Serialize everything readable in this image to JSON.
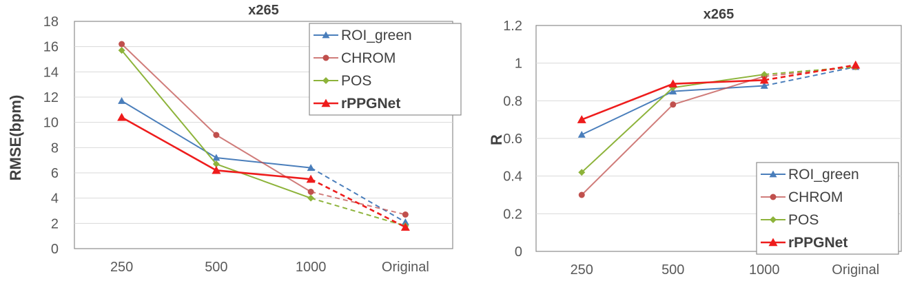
{
  "chart_data": [
    {
      "type": "line",
      "title": "x265",
      "xlabel": "",
      "ylabel": "RMSE(bpm)",
      "categories": [
        "250",
        "500",
        "1000",
        "Original"
      ],
      "ylim": [
        0,
        18
      ],
      "yticks": [
        "0",
        "2",
        "4",
        "6",
        "8",
        "10",
        "12",
        "14",
        "16",
        "18"
      ],
      "grid": "horizontal",
      "legend_position": "top-right",
      "dashed_last_segment": true,
      "series": [
        {
          "name": "ROI_green",
          "values": [
            11.7,
            7.2,
            6.4,
            2.1
          ],
          "color": "#4a7ebb",
          "marker": "triangle",
          "bold": false
        },
        {
          "name": "CHROM",
          "values": [
            16.2,
            9.0,
            4.5,
            2.7
          ],
          "color": "#c0504d",
          "marker": "circle",
          "bold": false,
          "light": true
        },
        {
          "name": "POS",
          "values": [
            15.7,
            6.7,
            4.0,
            1.8
          ],
          "color": "#8db33a",
          "marker": "diamond",
          "bold": false
        },
        {
          "name": "rPPGNet",
          "values": [
            10.4,
            6.2,
            5.5,
            1.7
          ],
          "color": "#ee1c1c",
          "marker": "triangle",
          "bold": true
        }
      ]
    },
    {
      "type": "line",
      "title": "x265",
      "xlabel": "",
      "ylabel": "R",
      "categories": [
        "250",
        "500",
        "1000",
        "Original"
      ],
      "ylim": [
        0,
        1.2
      ],
      "yticks": [
        "0",
        "0.2",
        "0.4",
        "0.6",
        "0.8",
        "1",
        "1.2"
      ],
      "grid": "horizontal",
      "legend_position": "bottom-right",
      "dashed_last_segment": true,
      "series": [
        {
          "name": "ROI_green",
          "values": [
            0.62,
            0.85,
            0.88,
            0.98
          ],
          "color": "#4a7ebb",
          "marker": "triangle",
          "bold": false
        },
        {
          "name": "CHROM",
          "values": [
            0.3,
            0.78,
            0.93,
            0.98
          ],
          "color": "#c0504d",
          "marker": "circle",
          "bold": false,
          "light": true
        },
        {
          "name": "POS",
          "values": [
            0.42,
            0.87,
            0.94,
            0.98
          ],
          "color": "#8db33a",
          "marker": "diamond",
          "bold": false
        },
        {
          "name": "rPPGNet",
          "values": [
            0.7,
            0.89,
            0.91,
            0.99
          ],
          "color": "#ee1c1c",
          "marker": "triangle",
          "bold": true
        }
      ]
    }
  ]
}
